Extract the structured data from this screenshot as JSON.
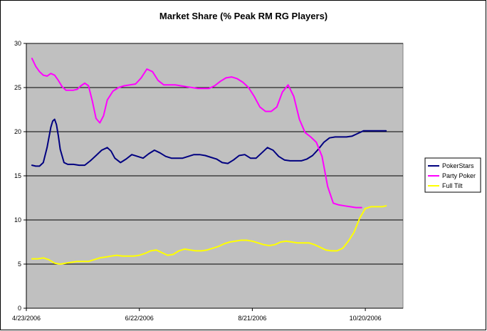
{
  "chart_data": {
    "type": "line",
    "title": "Market Share (% Peak RM RG Players)",
    "xlabel": "",
    "ylabel": "",
    "x_ticks": [
      "4/23/2006",
      "6/22/2006",
      "8/21/2006",
      "10/20/2006"
    ],
    "x_tick_days": [
      0,
      60,
      120,
      180
    ],
    "xlim_days": [
      0,
      200
    ],
    "ylim": [
      0,
      30
    ],
    "y_ticks": [
      0,
      5,
      10,
      15,
      20,
      25,
      30
    ],
    "grid": true,
    "background": "#C0C0C0",
    "legend_position": "right",
    "series": [
      {
        "name": "PokerStars",
        "color": "#000080",
        "x_days": [
          3,
          5,
          7,
          9,
          11,
          13,
          14,
          15,
          16,
          17,
          18,
          20,
          22,
          25,
          28,
          31,
          34,
          37,
          40,
          43,
          45,
          47,
          50,
          53,
          56,
          59,
          62,
          65,
          68,
          71,
          74,
          77,
          80,
          83,
          86,
          89,
          92,
          95,
          98,
          101,
          104,
          107,
          110,
          113,
          116,
          119,
          122,
          125,
          128,
          131,
          134,
          137,
          140,
          143,
          146,
          149,
          152,
          155,
          158,
          161,
          164,
          167,
          170,
          173,
          176,
          179,
          182,
          185,
          188,
          191
        ],
        "values": [
          16.2,
          16.1,
          16.1,
          16.5,
          18.2,
          20.5,
          21.2,
          21.4,
          20.8,
          19.5,
          18.0,
          16.5,
          16.3,
          16.3,
          16.2,
          16.2,
          16.7,
          17.3,
          17.9,
          18.2,
          17.8,
          17.0,
          16.5,
          16.9,
          17.4,
          17.2,
          17.0,
          17.5,
          17.9,
          17.6,
          17.2,
          17.0,
          17.0,
          17.0,
          17.2,
          17.4,
          17.4,
          17.3,
          17.1,
          16.9,
          16.5,
          16.4,
          16.8,
          17.3,
          17.4,
          17.0,
          17.0,
          17.6,
          18.2,
          17.9,
          17.2,
          16.8,
          16.7,
          16.7,
          16.7,
          16.9,
          17.3,
          18.0,
          18.8,
          19.3,
          19.4,
          19.4,
          19.4,
          19.5,
          19.8,
          20.1,
          20.1,
          20.1,
          20.1,
          20.1
        ]
      },
      {
        "name": "Party Poker",
        "color": "#FF00FF",
        "x_days": [
          3,
          5,
          7,
          9,
          11,
          13,
          15,
          17,
          19,
          21,
          23,
          25,
          27,
          29,
          31,
          33,
          35,
          37,
          39,
          41,
          43,
          46,
          49,
          52,
          55,
          58,
          61,
          64,
          67,
          70,
          73,
          76,
          79,
          82,
          85,
          88,
          91,
          94,
          97,
          100,
          103,
          106,
          109,
          112,
          115,
          118,
          121,
          124,
          127,
          130,
          133,
          136,
          139,
          142,
          145,
          148,
          151,
          154,
          157,
          160,
          163,
          166,
          169,
          172,
          175,
          178
        ],
        "values": [
          28.3,
          27.4,
          26.8,
          26.4,
          26.3,
          26.6,
          26.4,
          25.8,
          25.1,
          24.7,
          24.7,
          24.7,
          24.8,
          25.2,
          25.5,
          25.2,
          23.5,
          21.5,
          21.0,
          21.8,
          23.6,
          24.6,
          25.0,
          25.2,
          25.3,
          25.4,
          26.1,
          27.1,
          26.8,
          25.8,
          25.3,
          25.3,
          25.3,
          25.2,
          25.1,
          25.0,
          24.9,
          24.9,
          24.9,
          25.2,
          25.7,
          26.1,
          26.2,
          26.0,
          25.6,
          25.0,
          24.0,
          22.8,
          22.3,
          22.3,
          22.8,
          24.5,
          25.3,
          24.0,
          21.4,
          19.9,
          19.4,
          18.8,
          17.2,
          13.8,
          11.9,
          11.7,
          11.6,
          11.5,
          11.4,
          11.4
        ]
      },
      {
        "name": "Full Tilt",
        "color": "#FFFF00",
        "x_days": [
          3,
          6,
          9,
          12,
          15,
          18,
          21,
          24,
          27,
          30,
          33,
          36,
          39,
          42,
          45,
          48,
          51,
          54,
          57,
          60,
          63,
          66,
          69,
          72,
          75,
          78,
          81,
          84,
          87,
          90,
          93,
          96,
          99,
          102,
          105,
          108,
          111,
          114,
          117,
          120,
          123,
          126,
          129,
          132,
          135,
          138,
          141,
          144,
          147,
          150,
          153,
          156,
          159,
          162,
          165,
          168,
          171,
          174,
          177,
          180,
          183,
          186,
          189,
          191
        ],
        "values": [
          5.6,
          5.6,
          5.7,
          5.5,
          5.1,
          5.0,
          5.1,
          5.2,
          5.3,
          5.3,
          5.3,
          5.5,
          5.7,
          5.8,
          5.9,
          6.0,
          5.9,
          5.9,
          5.9,
          6.0,
          6.2,
          6.5,
          6.6,
          6.3,
          6.0,
          6.1,
          6.5,
          6.7,
          6.6,
          6.5,
          6.5,
          6.6,
          6.8,
          7.0,
          7.3,
          7.5,
          7.6,
          7.7,
          7.7,
          7.6,
          7.4,
          7.2,
          7.1,
          7.2,
          7.5,
          7.6,
          7.5,
          7.4,
          7.4,
          7.4,
          7.2,
          6.9,
          6.6,
          6.5,
          6.5,
          6.8,
          7.6,
          8.6,
          10.2,
          11.3,
          11.5,
          11.5,
          11.5,
          11.6
        ]
      }
    ]
  }
}
